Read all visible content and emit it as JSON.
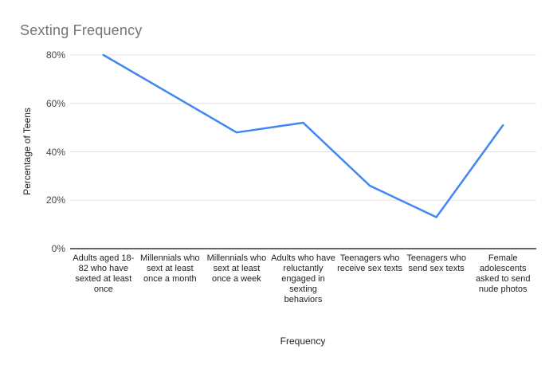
{
  "title": "Sexting Frequency",
  "chart_data": {
    "type": "line",
    "title": "Sexting Frequency",
    "xlabel": "Frequency",
    "ylabel": "Percentage of Teens",
    "categories": [
      "Adults aged 18-82 who have sexted at least once",
      "Millennials who sext at least once a month",
      "Millennials who sext at least once a week",
      "Adults who have reluctantly engaged in sexting behaviors",
      "Teenagers who receive sex texts",
      "Teenagers who send sex texts",
      "Female adolescents asked to send nude photos"
    ],
    "values": [
      80,
      64,
      48,
      52,
      26,
      13,
      51
    ],
    "ylim": [
      0,
      80
    ],
    "yticks": [
      {
        "value": 0,
        "label": "0%"
      },
      {
        "value": 20,
        "label": "20%"
      },
      {
        "value": 40,
        "label": "40%"
      },
      {
        "value": 60,
        "label": "60%"
      },
      {
        "value": 80,
        "label": "80%"
      }
    ],
    "grid": true,
    "legend": "none",
    "colors": {
      "series": "#4285f4",
      "grid": "#e0e0e0",
      "axis": "#333333",
      "title": "#757575",
      "tick_text": "#444444",
      "label_text": "#222222"
    }
  }
}
